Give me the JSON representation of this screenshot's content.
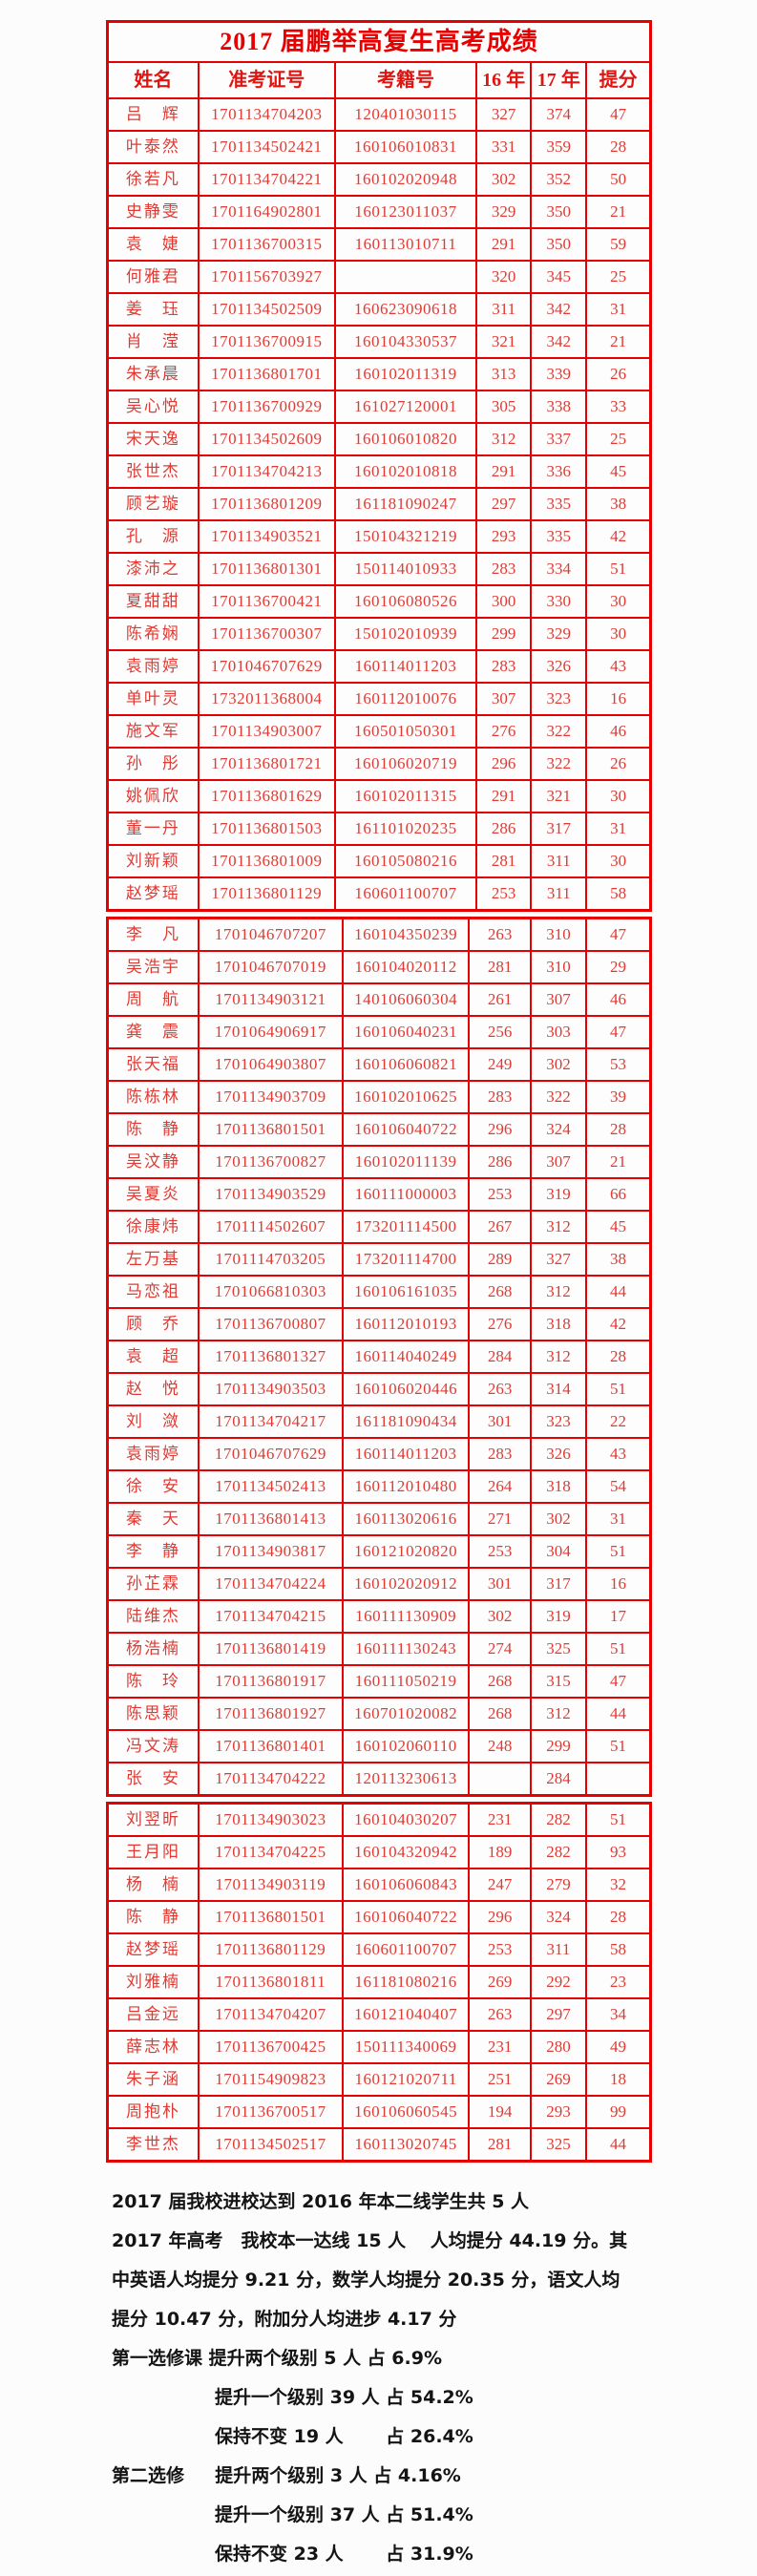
{
  "title": "2017 届鹏举高复生高考成绩",
  "table": {
    "headers": [
      "姓名",
      "准考证号",
      "考籍号",
      "16 年",
      "17 年",
      "提分"
    ],
    "sections": [
      {
        "rows": [
          [
            "吕　辉",
            "1701134704203",
            "120401030115",
            "327",
            "374",
            "47"
          ],
          [
            "叶泰然",
            "1701134502421",
            "160106010831",
            "331",
            "359",
            "28"
          ],
          [
            "徐若凡",
            "1701134704221",
            "160102020948",
            "302",
            "352",
            "50"
          ],
          [
            "史静雯",
            "1701164902801",
            "160123011037",
            "329",
            "350",
            "21"
          ],
          [
            "袁　婕",
            "1701136700315",
            "160113010711",
            "291",
            "350",
            "59"
          ],
          [
            "何雅君",
            "1701156703927",
            "",
            "320",
            "345",
            "25"
          ],
          [
            "姜　珏",
            "1701134502509",
            "160623090618",
            "311",
            "342",
            "31"
          ],
          [
            "肖　滢",
            "1701136700915",
            "160104330537",
            "321",
            "342",
            "21"
          ],
          [
            "朱承晨",
            "1701136801701",
            "160102011319",
            "313",
            "339",
            "26"
          ],
          [
            "吴心悦",
            "1701136700929",
            "161027120001",
            "305",
            "338",
            "33"
          ],
          [
            "宋天逸",
            "1701134502609",
            "160106010820",
            "312",
            "337",
            "25"
          ],
          [
            "张世杰",
            "1701134704213",
            "160102010818",
            "291",
            "336",
            "45"
          ],
          [
            "顾艺璇",
            "1701136801209",
            "161181090247",
            "297",
            "335",
            "38"
          ],
          [
            "孔　源",
            "1701134903521",
            "150104321219",
            "293",
            "335",
            "42"
          ],
          [
            "漆沛之",
            "1701136801301",
            "150114010933",
            "283",
            "334",
            "51"
          ],
          [
            "夏甜甜",
            "1701136700421",
            "160106080526",
            "300",
            "330",
            "30"
          ],
          [
            "陈希娴",
            "1701136700307",
            "150102010939",
            "299",
            "329",
            "30"
          ],
          [
            "袁雨婷",
            "1701046707629",
            "160114011203",
            "283",
            "326",
            "43"
          ],
          [
            "单叶灵",
            "1732011368004",
            "160112010076",
            "307",
            "323",
            "16"
          ],
          [
            "施文军",
            "1701134903007",
            "160501050301",
            "276",
            "322",
            "46"
          ],
          [
            "孙　彤",
            "1701136801721",
            "160106020719",
            "296",
            "322",
            "26"
          ],
          [
            "姚佩欣",
            "1701136801629",
            "160102011315",
            "291",
            "321",
            "30"
          ],
          [
            "董一丹",
            "1701136801503",
            "161101020235",
            "286",
            "317",
            "31"
          ],
          [
            "刘新颖",
            "1701136801009",
            "160105080216",
            "281",
            "311",
            "30"
          ],
          [
            "赵梦瑶",
            "1701136801129",
            "160601100707",
            "253",
            "311",
            "58"
          ]
        ]
      },
      {
        "rows": [
          [
            "李　凡",
            "1701046707207",
            "160104350239",
            "263",
            "310",
            "47"
          ],
          [
            "吴浩宇",
            "1701046707019",
            "160104020112",
            "281",
            "310",
            "29"
          ],
          [
            "周　航",
            "1701134903121",
            "140106060304",
            "261",
            "307",
            "46"
          ],
          [
            "龚　震",
            "1701064906917",
            "160106040231",
            "256",
            "303",
            "47"
          ],
          [
            "张天福",
            "1701064903807",
            "160106060821",
            "249",
            "302",
            "53"
          ],
          [
            "陈栋林",
            "1701134903709",
            "160102010625",
            "283",
            "322",
            "39"
          ],
          [
            "陈　静",
            "1701136801501",
            "160106040722",
            "296",
            "324",
            "28"
          ],
          [
            "吴汶静",
            "1701136700827",
            "160102011139",
            "286",
            "307",
            "21"
          ],
          [
            "吴夏炎",
            "1701134903529",
            "160111000003",
            "253",
            "319",
            "66"
          ],
          [
            "徐康炜",
            "1701114502607",
            "173201114500",
            "267",
            "312",
            "45"
          ],
          [
            "左万基",
            "1701114703205",
            "173201114700",
            "289",
            "327",
            "38"
          ],
          [
            "马恋祖",
            "1701066810303",
            "160106161035",
            "268",
            "312",
            "44"
          ],
          [
            "顾　乔",
            "1701136700807",
            "160112010193",
            "276",
            "318",
            "42"
          ],
          [
            "袁　超",
            "1701136801327",
            "160114040249",
            "284",
            "312",
            "28"
          ],
          [
            "赵　悦",
            "1701134903503",
            "160106020446",
            "263",
            "314",
            "51"
          ],
          [
            "刘　潋",
            "1701134704217",
            "161181090434",
            "301",
            "323",
            "22"
          ],
          [
            "袁雨婷",
            "1701046707629",
            "160114011203",
            "283",
            "326",
            "43"
          ],
          [
            "徐　安",
            "1701134502413",
            "160112010480",
            "264",
            "318",
            "54"
          ],
          [
            "秦　天",
            "1701136801413",
            "160113020616",
            "271",
            "302",
            "31"
          ],
          [
            "李　静",
            "1701134903817",
            "160121020820",
            "253",
            "304",
            "51"
          ],
          [
            "孙芷霖",
            "1701134704224",
            "160102020912",
            "301",
            "317",
            "16"
          ],
          [
            "陆维杰",
            "1701134704215",
            "160111130909",
            "302",
            "319",
            "17"
          ],
          [
            "杨浩楠",
            "1701136801419",
            "160111130243",
            "274",
            "325",
            "51"
          ],
          [
            "陈　玲",
            "1701136801917",
            "160111050219",
            "268",
            "315",
            "47"
          ],
          [
            "陈思颖",
            "1701136801927",
            "160701020082",
            "268",
            "312",
            "44"
          ],
          [
            "冯文涛",
            "1701136801401",
            "160102060110",
            "248",
            "299",
            "51"
          ],
          [
            "张　安",
            "1701134704222",
            "120113230613",
            "",
            "284",
            ""
          ]
        ]
      },
      {
        "rows": [
          [
            "刘翌昕",
            "1701134903023",
            "160104030207",
            "231",
            "282",
            "51"
          ],
          [
            "王月阳",
            "1701134704225",
            "160104320942",
            "189",
            "282",
            "93"
          ],
          [
            "杨　楠",
            "1701134903119",
            "160106060843",
            "247",
            "279",
            "32"
          ],
          [
            "陈　静",
            "1701136801501",
            "160106040722",
            "296",
            "324",
            "28"
          ],
          [
            "赵梦瑶",
            "1701136801129",
            "160601100707",
            "253",
            "311",
            "58"
          ],
          [
            "刘雅楠",
            "1701136801811",
            "161181080216",
            "269",
            "292",
            "23"
          ],
          [
            "吕金远",
            "1701134704207",
            "160121040407",
            "263",
            "297",
            "34"
          ],
          [
            "薛志林",
            "1701136700425",
            "150111340069",
            "231",
            "280",
            "49"
          ],
          [
            "朱子涵",
            "1701154909823",
            "160121020711",
            "251",
            "269",
            "18"
          ],
          [
            "周抱朴",
            "1701136700517",
            "160106060545",
            "194",
            "293",
            "99"
          ],
          [
            "李世杰",
            "1701134502517",
            "160113020745",
            "281",
            "325",
            "44"
          ]
        ]
      }
    ]
  },
  "summary": {
    "lines": [
      {
        "indent": 0,
        "text": "2017 届我校进校达到 2016 年本二线学生共 5 人"
      },
      {
        "indent": 0,
        "text": "2017 年高考　我校本一达线 15 人　 人均提分 44.19 分。其"
      },
      {
        "indent": 0,
        "text": "中英语人均提分 9.21 分，数学人均提分 20.35 分，语文人均"
      },
      {
        "indent": 0,
        "text": "提分 10.47 分，附加分人均进步 4.17 分"
      },
      {
        "indent": 0,
        "text": "第一选修课 提升两个级别 5 人 占 6.9%"
      },
      {
        "indent": 1,
        "text": "提升一个级别 39 人 占 54.2%"
      },
      {
        "indent": 1,
        "text": "保持不变 19 人　　 占 26.4%"
      },
      {
        "indent": 0,
        "text": "第二选修　  提升两个级别 3 人 占 4.16%"
      },
      {
        "indent": 1,
        "text": "提升一个级别 37 人 占 51.4%"
      },
      {
        "indent": 1,
        "text": "保持不变 23 人　　 占 31.9%"
      }
    ]
  },
  "colors": {
    "table_red": "#e60000",
    "cell_text_red": "#e03a33",
    "summary_text": "#141414"
  }
}
